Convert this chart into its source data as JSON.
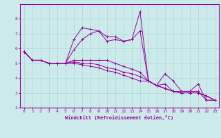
{
  "xlabel": "Windchill (Refroidissement éolien,°C)",
  "ylabel": "",
  "background_color": "#cceaea",
  "line_color": "#990099",
  "grid_color": "#aad8d8",
  "xlim": [
    -0.5,
    23.5
  ],
  "ylim": [
    2,
    9
  ],
  "yticks": [
    2,
    3,
    4,
    5,
    6,
    7,
    8
  ],
  "xticks": [
    0,
    1,
    2,
    3,
    4,
    5,
    6,
    7,
    8,
    9,
    10,
    11,
    12,
    13,
    14,
    15,
    16,
    17,
    18,
    19,
    20,
    21,
    22,
    23
  ],
  "series": [
    [
      5.8,
      5.2,
      5.2,
      5.0,
      5.0,
      5.0,
      6.6,
      7.4,
      7.3,
      7.2,
      6.5,
      6.6,
      6.5,
      6.6,
      8.5,
      3.8,
      3.5,
      4.3,
      3.8,
      3.1,
      3.1,
      3.6,
      2.5,
      2.5
    ],
    [
      5.8,
      5.2,
      5.2,
      5.0,
      5.0,
      5.0,
      5.9,
      6.6,
      7.0,
      7.2,
      6.8,
      6.8,
      6.5,
      6.6,
      7.2,
      3.8,
      3.5,
      3.6,
      3.1,
      3.1,
      3.1,
      3.1,
      2.5,
      2.5
    ],
    [
      5.8,
      5.2,
      5.2,
      5.0,
      5.0,
      5.0,
      5.2,
      5.2,
      5.2,
      5.2,
      5.2,
      5.0,
      4.8,
      4.6,
      4.4,
      3.8,
      3.5,
      3.3,
      3.1,
      3.0,
      3.0,
      3.0,
      2.8,
      2.5
    ],
    [
      5.8,
      5.2,
      5.2,
      5.0,
      5.0,
      5.0,
      5.1,
      5.0,
      5.0,
      4.9,
      4.7,
      4.6,
      4.4,
      4.3,
      4.1,
      3.8,
      3.5,
      3.3,
      3.1,
      3.0,
      3.0,
      3.0,
      2.8,
      2.5
    ],
    [
      5.8,
      5.2,
      5.2,
      5.0,
      5.0,
      5.0,
      5.0,
      4.9,
      4.8,
      4.7,
      4.5,
      4.4,
      4.2,
      4.0,
      3.8,
      3.8,
      3.5,
      3.3,
      3.1,
      3.0,
      3.0,
      3.0,
      2.8,
      2.5
    ]
  ],
  "marker": "+",
  "marker_size": 3,
  "linewidth": 0.7,
  "tick_fontsize": 4.5,
  "xlabel_fontsize": 5.0
}
